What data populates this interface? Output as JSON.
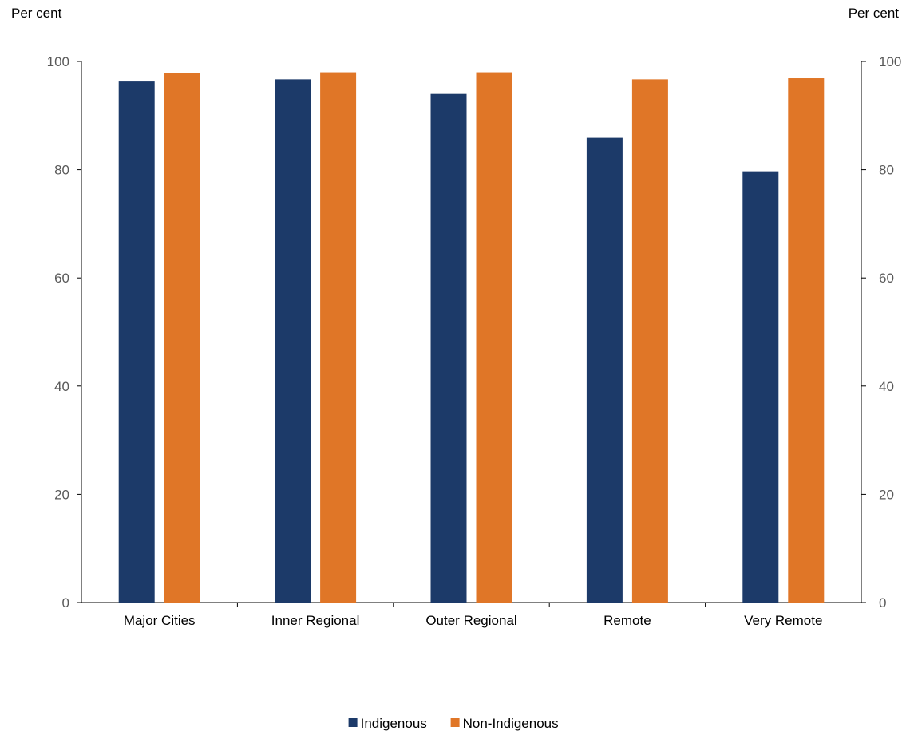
{
  "chart_data": {
    "type": "bar",
    "title": "",
    "left_axis_label": "Per cent",
    "right_axis_label": "Per cent",
    "ylim": [
      0,
      100
    ],
    "yticks": [
      "0",
      "20",
      "40",
      "60",
      "80",
      "100"
    ],
    "categories": [
      "Major Cities",
      "Inner Regional",
      "Outer Regional",
      "Remote",
      "Very Remote"
    ],
    "series": [
      {
        "name": "Indigenous",
        "color": "#1c3a69",
        "values": [
          96.3,
          96.7,
          94.0,
          85.9,
          79.7
        ]
      },
      {
        "name": "Non-Indigenous",
        "color": "#e07627",
        "values": [
          97.8,
          98.0,
          98.0,
          96.7,
          96.9
        ]
      }
    ],
    "grid": false,
    "legend_position": "bottom-center"
  }
}
